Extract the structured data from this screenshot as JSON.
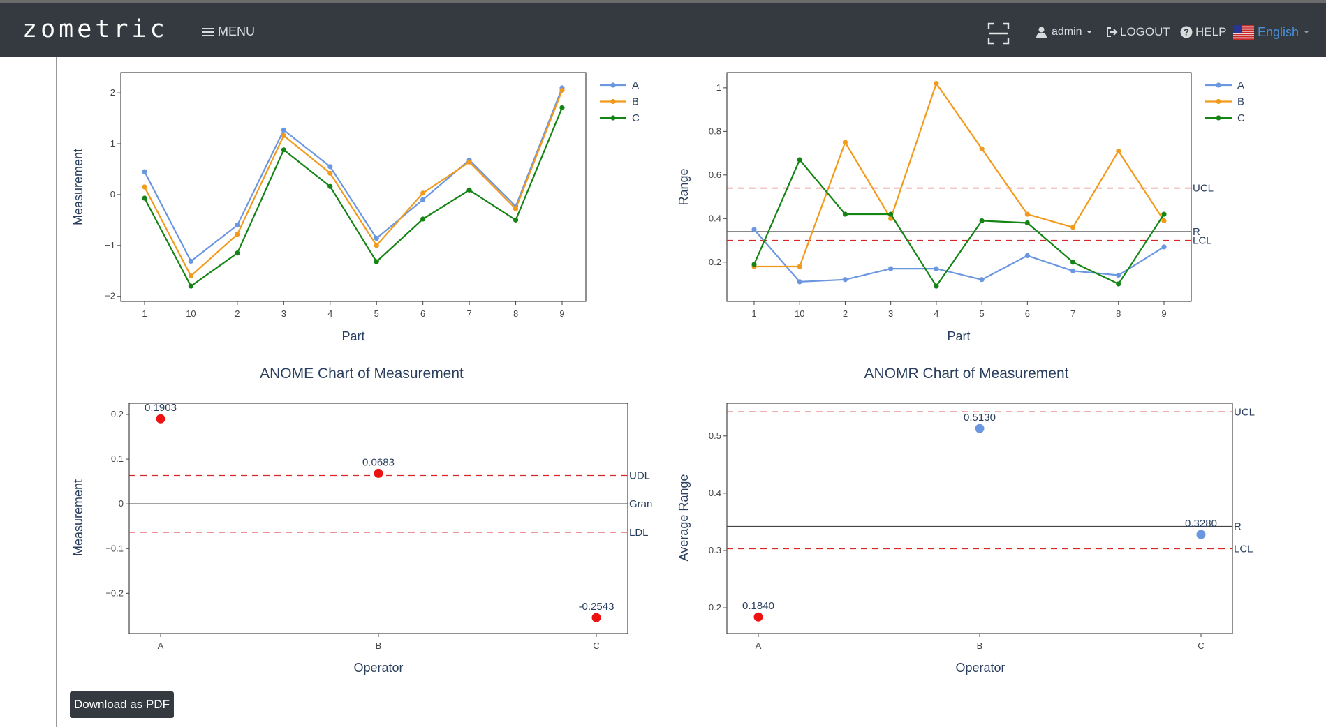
{
  "header": {
    "logo": "zometric",
    "menu_label": "MENU",
    "user_label": "admin",
    "logout_label": "LOGOUT",
    "help_label": "HELP",
    "language_label": "English",
    "language_color": "#4a90d9",
    "icons": [
      "hamburger-icon",
      "fullscreen-icon",
      "user-icon",
      "caret-down-icon",
      "logout-icon",
      "help-icon",
      "us-flag-icon"
    ]
  },
  "colors": {
    "A": "#6b96e0",
    "B": "#f29a1c",
    "C": "#148414",
    "limit": "#d62728",
    "center": "#444444",
    "point_red": "#ee1111",
    "point_blue": "#6b96e0"
  },
  "chart_data": [
    {
      "id": "interaction",
      "type": "line",
      "title": "",
      "xlabel": "Part",
      "ylabel": "Measurement",
      "categories": [
        "1",
        "10",
        "2",
        "3",
        "4",
        "5",
        "6",
        "7",
        "8",
        "9"
      ],
      "ylim": [
        -2.1,
        2.4
      ],
      "yticks": [
        -2,
        -1,
        0,
        1,
        2
      ],
      "ytick_labels": [
        "−2",
        "−1",
        "0",
        "1",
        "2"
      ],
      "legend": "top-right",
      "series": [
        {
          "name": "A",
          "values": [
            0.45,
            -1.31,
            -0.6,
            1.27,
            0.55,
            -0.86,
            -0.1,
            0.68,
            -0.23,
            2.1
          ]
        },
        {
          "name": "B",
          "values": [
            0.15,
            -1.6,
            -0.78,
            1.16,
            0.42,
            -1.0,
            0.03,
            0.64,
            -0.28,
            2.05
          ]
        },
        {
          "name": "C",
          "values": [
            -0.07,
            -1.8,
            -1.15,
            0.88,
            0.16,
            -1.32,
            -0.48,
            0.09,
            -0.5,
            1.71
          ]
        }
      ]
    },
    {
      "id": "range",
      "type": "line",
      "title": "",
      "xlabel": "Part",
      "ylabel": "Range",
      "categories": [
        "1",
        "10",
        "2",
        "3",
        "4",
        "5",
        "6",
        "7",
        "8",
        "9"
      ],
      "ylim": [
        0.02,
        1.07
      ],
      "yticks": [
        0.2,
        0.4,
        0.6,
        0.8,
        1
      ],
      "ytick_labels": [
        "0.2",
        "0.4",
        "0.6",
        "0.8",
        "1"
      ],
      "legend": "top-right",
      "reference_lines": [
        {
          "label": "UCL",
          "value": 0.54,
          "style": "dashed"
        },
        {
          "label": "R",
          "value": 0.34,
          "style": "solid"
        },
        {
          "label": "LCL",
          "value": 0.3,
          "style": "dashed"
        }
      ],
      "series": [
        {
          "name": "A",
          "values": [
            0.35,
            0.11,
            0.12,
            0.17,
            0.17,
            0.12,
            0.23,
            0.16,
            0.14,
            0.27
          ]
        },
        {
          "name": "B",
          "values": [
            0.18,
            0.18,
            0.75,
            0.4,
            1.02,
            0.72,
            0.42,
            0.36,
            0.71,
            0.39
          ]
        },
        {
          "name": "C",
          "values": [
            0.19,
            0.67,
            0.42,
            0.42,
            0.09,
            0.39,
            0.38,
            0.2,
            0.1,
            0.42
          ]
        }
      ]
    },
    {
      "id": "anome",
      "type": "scatter",
      "title": "ANOME Chart of Measurement",
      "xlabel": "Operator",
      "ylabel": "Measurement",
      "categories": [
        "A",
        "B",
        "C"
      ],
      "ylim": [
        -0.29,
        0.225
      ],
      "yticks": [
        -0.2,
        -0.1,
        0,
        0.1,
        0.2
      ],
      "ytick_labels": [
        "−0.2",
        "−0.1",
        "0",
        "0.1",
        "0.2"
      ],
      "reference_lines": [
        {
          "label": "UDL",
          "value": 0.0635,
          "style": "dashed"
        },
        {
          "label": "Gran",
          "value": 0,
          "style": "solid"
        },
        {
          "label": "LDL",
          "value": -0.0635,
          "style": "dashed"
        }
      ],
      "points": [
        {
          "x": "A",
          "y": 0.1903,
          "label": "0.1903",
          "color": "red"
        },
        {
          "x": "B",
          "y": 0.0683,
          "label": "0.0683",
          "color": "red"
        },
        {
          "x": "C",
          "y": -0.2543,
          "label": "-0.2543",
          "color": "red"
        }
      ]
    },
    {
      "id": "anomr",
      "type": "scatter",
      "title": "ANOMR Chart of Measurement",
      "xlabel": "Operator",
      "ylabel": "Average Range",
      "categories": [
        "A",
        "B",
        "C"
      ],
      "ylim": [
        0.155,
        0.557
      ],
      "yticks": [
        0.2,
        0.3,
        0.4,
        0.5
      ],
      "ytick_labels": [
        "0.2",
        "0.3",
        "0.4",
        "0.5"
      ],
      "reference_lines": [
        {
          "label": "UCL",
          "value": 0.542,
          "style": "dashed"
        },
        {
          "label": "R",
          "value": 0.342,
          "style": "solid"
        },
        {
          "label": "LCL",
          "value": 0.303,
          "style": "dashed"
        }
      ],
      "points": [
        {
          "x": "A",
          "y": 0.184,
          "label": "0.1840",
          "color": "red"
        },
        {
          "x": "B",
          "y": 0.513,
          "label": "0.5130",
          "color": "blue"
        },
        {
          "x": "C",
          "y": 0.328,
          "label": "0.3280",
          "color": "blue"
        }
      ]
    }
  ],
  "download_label": "Download as PDF"
}
